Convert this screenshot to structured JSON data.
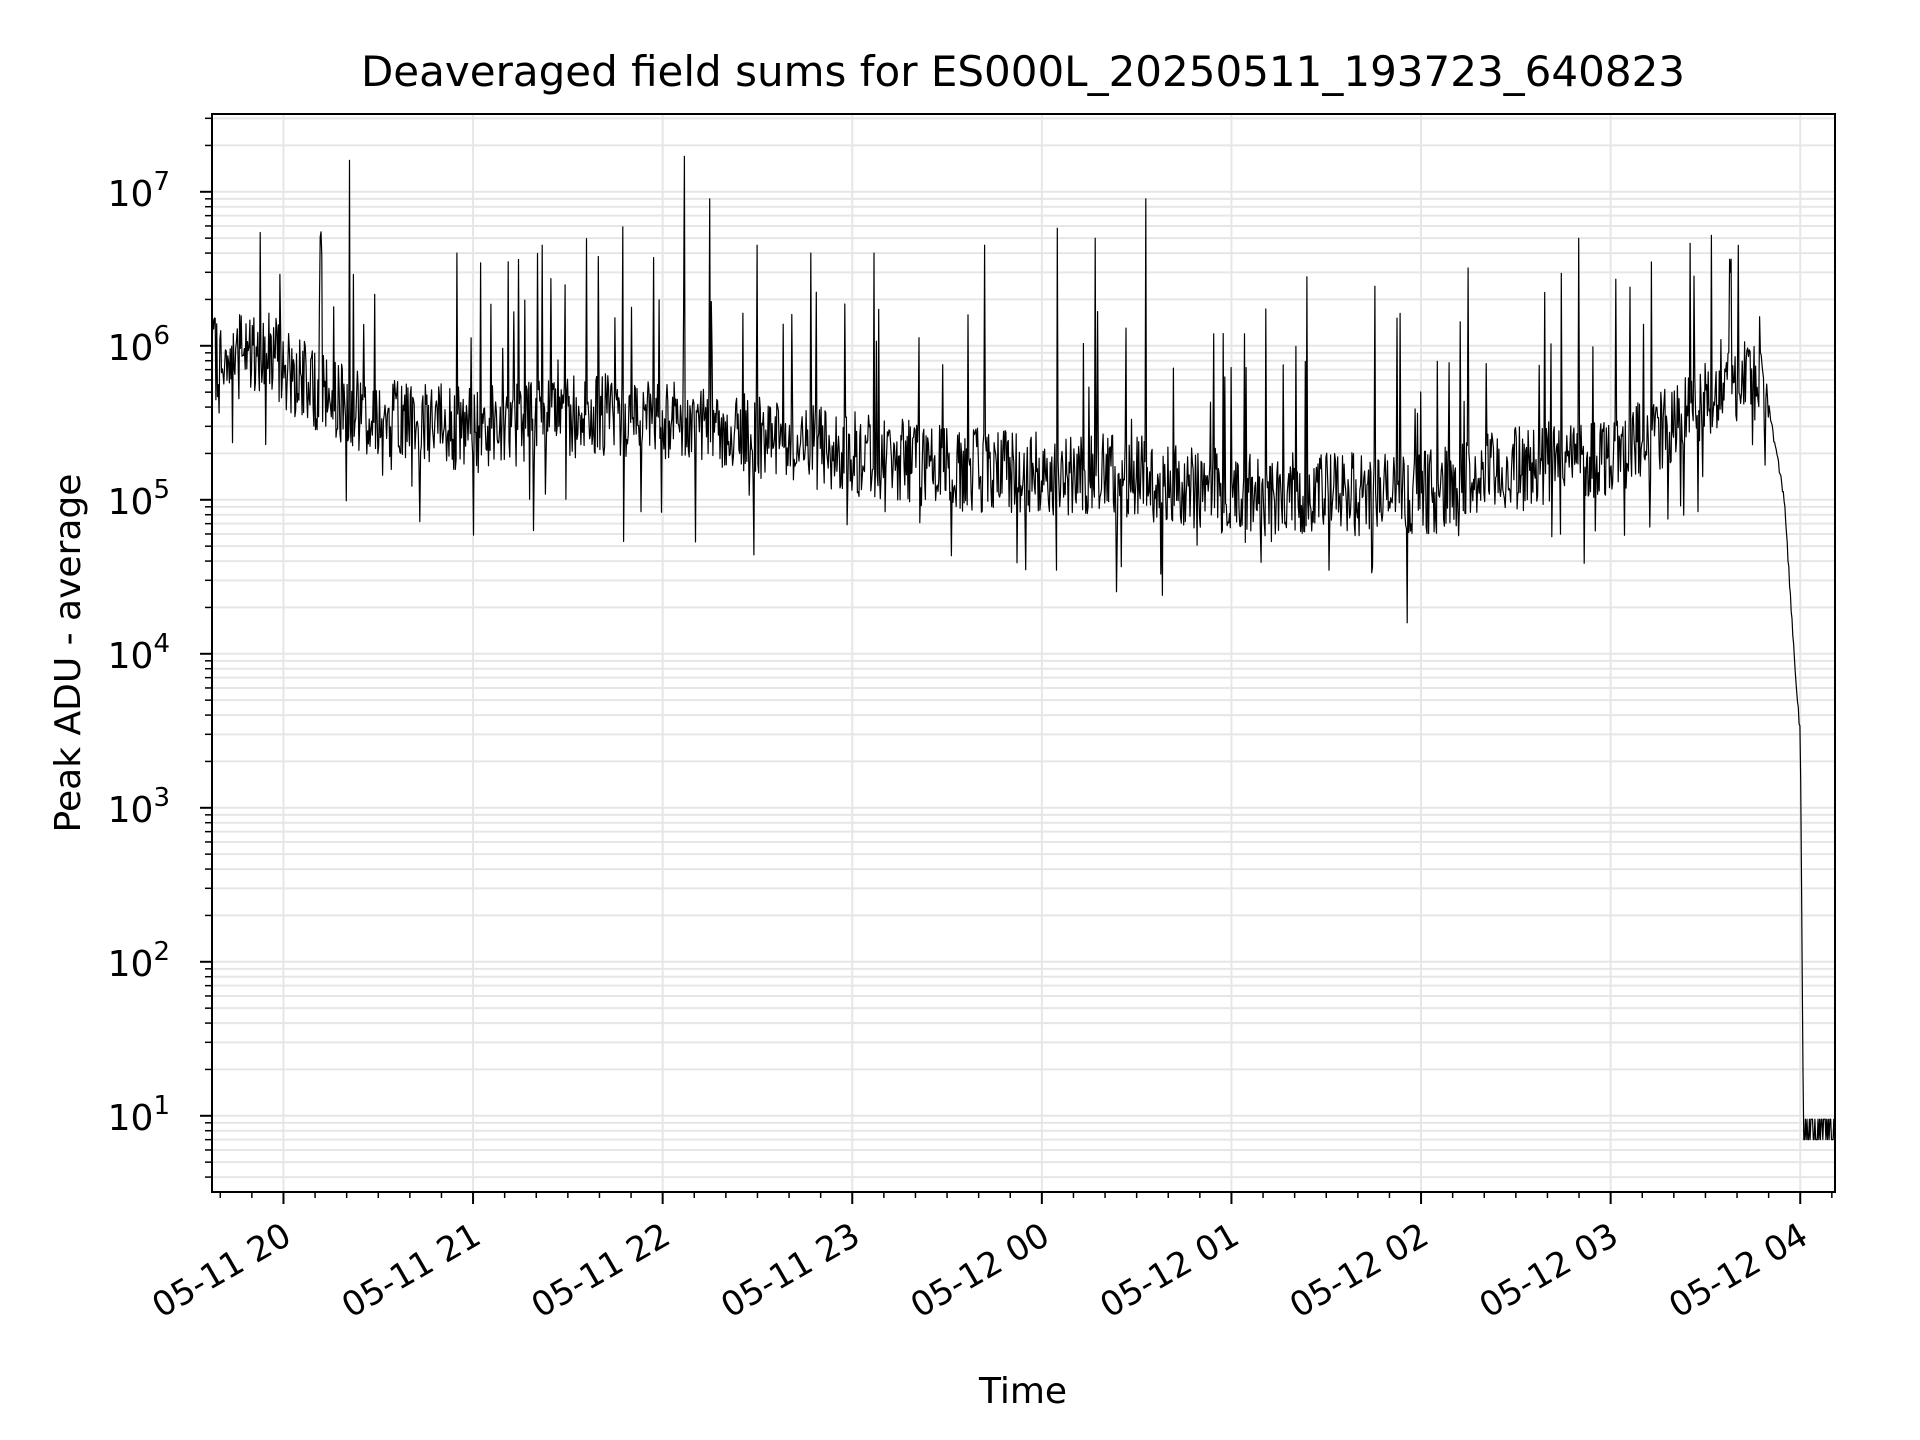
{
  "chart_data": {
    "type": "line",
    "title": "Deaveraged field sums for ES000L_20250511_193723_640823",
    "xlabel": "Time",
    "ylabel": "Peak ADU - average",
    "yscale": "log",
    "ylim": [
      3.2,
      32000000
    ],
    "xlim": [
      "2025-05-11T19:37:23",
      "2025-05-12T04:11:00"
    ],
    "grid": "major and minor",
    "legend": "none",
    "line_color": "#000000",
    "grid_color": "#e6e6e6",
    "x_ticks": [
      {
        "t": "2025-05-11T20:00",
        "label": "05-11 20"
      },
      {
        "t": "2025-05-11T21:00",
        "label": "05-11 21"
      },
      {
        "t": "2025-05-11T22:00",
        "label": "05-11 22"
      },
      {
        "t": "2025-05-11T23:00",
        "label": "05-11 23"
      },
      {
        "t": "2025-05-12T00:00",
        "label": "05-12 00"
      },
      {
        "t": "2025-05-12T01:00",
        "label": "05-12 01"
      },
      {
        "t": "2025-05-12T02:00",
        "label": "05-12 02"
      },
      {
        "t": "2025-05-12T03:00",
        "label": "05-12 03"
      },
      {
        "t": "2025-05-12T04:00",
        "label": "05-12 04"
      }
    ],
    "y_ticks": [
      {
        "value": 10,
        "base": "10",
        "exp": "1"
      },
      {
        "value": 100,
        "base": "10",
        "exp": "2"
      },
      {
        "value": 1000,
        "base": "10",
        "exp": "3"
      },
      {
        "value": 10000,
        "base": "10",
        "exp": "4"
      },
      {
        "value": 100000,
        "base": "10",
        "exp": "5"
      },
      {
        "value": 1000000,
        "base": "10",
        "exp": "6"
      },
      {
        "value": 10000000,
        "base": "10",
        "exp": "7"
      }
    ],
    "series": [
      {
        "x": [
          "2025-05-11T19:37",
          "2025-05-11T19:45",
          "2025-05-11T19:55",
          "2025-05-11T20:10",
          "2025-05-11T20:30",
          "2025-05-11T21:00",
          "2025-05-11T21:30",
          "2025-05-11T22:00",
          "2025-05-11T22:30",
          "2025-05-11T23:00",
          "2025-05-11T23:30",
          "2025-05-12T00:00",
          "2025-05-12T00:30",
          "2025-05-12T01:00",
          "2025-05-12T01:30",
          "2025-05-12T02:00",
          "2025-05-12T02:30",
          "2025-05-12T03:00",
          "2025-05-12T03:20",
          "2025-05-12T03:35",
          "2025-05-12T03:45",
          "2025-05-12T03:50",
          "2025-05-12T03:55",
          "2025-05-12T03:58",
          "2025-05-12T04:00",
          "2025-05-12T04:01",
          "2025-05-12T04:02",
          "2025-05-12T04:11"
        ],
        "y": [
          800000,
          850000,
          900000,
          500000,
          350000,
          280000,
          350000,
          350000,
          250000,
          200000,
          160000,
          150000,
          140000,
          110000,
          110000,
          110000,
          160000,
          200000,
          300000,
          550000,
          650000,
          400000,
          100000,
          10000,
          3000,
          10,
          8,
          8
        ]
      }
    ],
    "spikes": [
      {
        "t": "2025-05-11T20:12",
        "y": 5500000
      },
      {
        "t": "2025-05-11T20:21",
        "y": 16000000
      },
      {
        "t": "2025-05-11T20:55",
        "y": 4000000
      },
      {
        "t": "2025-05-11T21:22",
        "y": 4500000
      },
      {
        "t": "2025-05-11T22:07",
        "y": 17000000
      },
      {
        "t": "2025-05-11T22:15",
        "y": 9000000
      },
      {
        "t": "2025-05-11T22:30",
        "y": 4500000
      },
      {
        "t": "2025-05-11T22:47",
        "y": 4000000
      },
      {
        "t": "2025-05-11T23:07",
        "y": 4000000
      },
      {
        "t": "2025-05-11T23:42",
        "y": 4500000
      },
      {
        "t": "2025-05-12T00:05",
        "y": 5800000
      },
      {
        "t": "2025-05-12T00:17",
        "y": 5000000
      },
      {
        "t": "2025-05-12T00:33",
        "y": 9000000
      },
      {
        "t": "2025-05-12T01:24",
        "y": 2800000
      },
      {
        "t": "2025-05-12T02:15",
        "y": 3200000
      },
      {
        "t": "2025-05-12T02:50",
        "y": 5000000
      },
      {
        "t": "2025-05-12T03:13",
        "y": 3500000
      },
      {
        "t": "2025-05-12T03:38",
        "y": 3000000
      }
    ]
  }
}
